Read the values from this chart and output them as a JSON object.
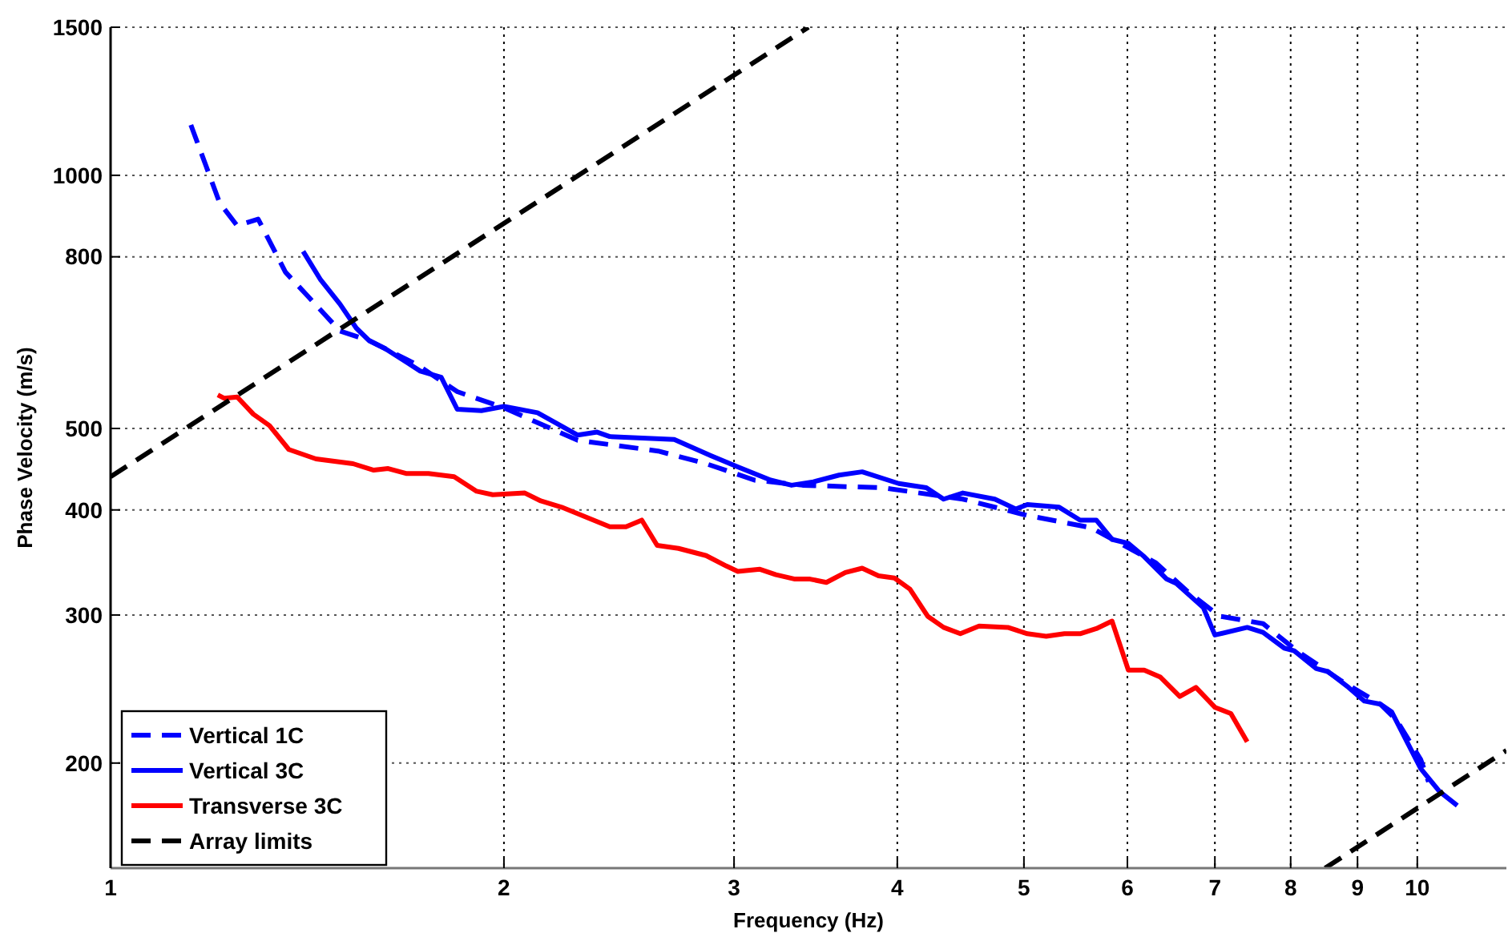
{
  "chart_data": {
    "type": "line",
    "xlabel": "Frequency (Hz)",
    "ylabel": "Phase Velocity (m/s)",
    "log": "xy",
    "xlim": [
      1,
      11.7
    ],
    "ylim": [
      150,
      1500
    ],
    "xticks": [
      1,
      2,
      3,
      4,
      5,
      6,
      7,
      8,
      9,
      10
    ],
    "yticks": [
      200,
      300,
      400,
      500,
      800,
      1000,
      1500
    ],
    "grid": true,
    "legend": "bottom left",
    "marker": "none",
    "series": [
      {
        "name": "Vertical 1C",
        "color": "#0000ff",
        "line_style": "dashed",
        "x": [
          1.152,
          1.212,
          1.25,
          1.297,
          1.361,
          1.416,
          1.498,
          1.577,
          1.717,
          1.842,
          2.0,
          2.278,
          2.624,
          2.856,
          3.11,
          3.385,
          3.9,
          4.49,
          5.03,
          5.63,
          6.31,
          6.67,
          7.06,
          7.62,
          8.09,
          8.73,
          9.37,
          9.64,
          10.06,
          10.2
        ],
        "values": [
          1148,
          927,
          871,
          887,
          767,
          718,
          653,
          636,
          595,
          553,
          529,
          484,
          470,
          454,
          434,
          428,
          425,
          412,
          394,
          381,
          346,
          320,
          299,
          293,
          272,
          251,
          235,
          225,
          202,
          190
        ]
      },
      {
        "name": "Vertical 3C",
        "color": "#0000ff",
        "line_style": "solid",
        "x": [
          1.404,
          1.448,
          1.498,
          1.542,
          1.577,
          1.623,
          1.726,
          1.791,
          1.842,
          1.922,
          2.0,
          2.122,
          2.278,
          2.357,
          2.41,
          2.7,
          2.88,
          3.02,
          3.2,
          3.32,
          3.45,
          3.61,
          3.76,
          4.01,
          4.21,
          4.34,
          4.49,
          4.75,
          4.93,
          5.03,
          5.32,
          5.52,
          5.68,
          5.84,
          6.01,
          6.18,
          6.43,
          6.54,
          6.86,
          7.0,
          7.41,
          7.62,
          7.91,
          8.05,
          8.37,
          8.54,
          8.86,
          9.11,
          9.37,
          9.56,
          10.06,
          10.4,
          10.73
        ],
        "values": [
          812,
          751,
          703,
          658,
          636,
          622,
          585,
          575,
          527,
          525,
          531,
          522,
          491,
          495,
          489,
          485,
          464,
          450,
          434,
          428,
          432,
          440,
          444,
          430,
          425,
          412,
          419,
          412,
          401,
          406,
          403,
          389,
          389,
          369,
          365,
          352,
          331,
          327,
          306,
          284,
          290,
          286,
          274,
          272,
          259,
          257,
          246,
          237,
          235,
          230,
          197,
          185,
          178
        ]
      },
      {
        "name": "Transverse 3C",
        "color": "#ff0000",
        "line_style": "solid",
        "x": [
          1.208,
          1.222,
          1.25,
          1.286,
          1.323,
          1.369,
          1.436,
          1.533,
          1.59,
          1.631,
          1.683,
          1.751,
          1.832,
          1.906,
          1.961,
          2.075,
          2.134,
          2.214,
          2.41,
          2.48,
          2.55,
          2.62,
          2.72,
          2.856,
          2.96,
          3.02,
          3.14,
          3.23,
          3.34,
          3.43,
          3.53,
          3.65,
          3.76,
          3.87,
          3.98,
          4.09,
          4.22,
          4.34,
          4.47,
          4.62,
          4.86,
          5.03,
          5.2,
          5.37,
          5.52,
          5.68,
          5.84,
          6.01,
          6.18,
          6.36,
          6.58,
          6.77,
          7.0,
          7.2,
          7.41
        ],
        "values": [
          548,
          543,
          545,
          520,
          504,
          472,
          460,
          454,
          446,
          448,
          442,
          442,
          438,
          421,
          417,
          419,
          410,
          403,
          382,
          382,
          389,
          363,
          360,
          353,
          343,
          338,
          340,
          335,
          331,
          331,
          328,
          337,
          341,
          334,
          332,
          322,
          299,
          290,
          285,
          291,
          290,
          285,
          283,
          285,
          285,
          289,
          295,
          258,
          258,
          253,
          240,
          246,
          233,
          229,
          212
        ]
      },
      {
        "name": "Array limits",
        "color": "#000000",
        "line_style": "dashed",
        "x": [
          1,
          3.42,
          5,
          8.5,
          11.7
        ],
        "values": [
          438,
          1500,
          null,
          150,
          207
        ]
      }
    ]
  }
}
